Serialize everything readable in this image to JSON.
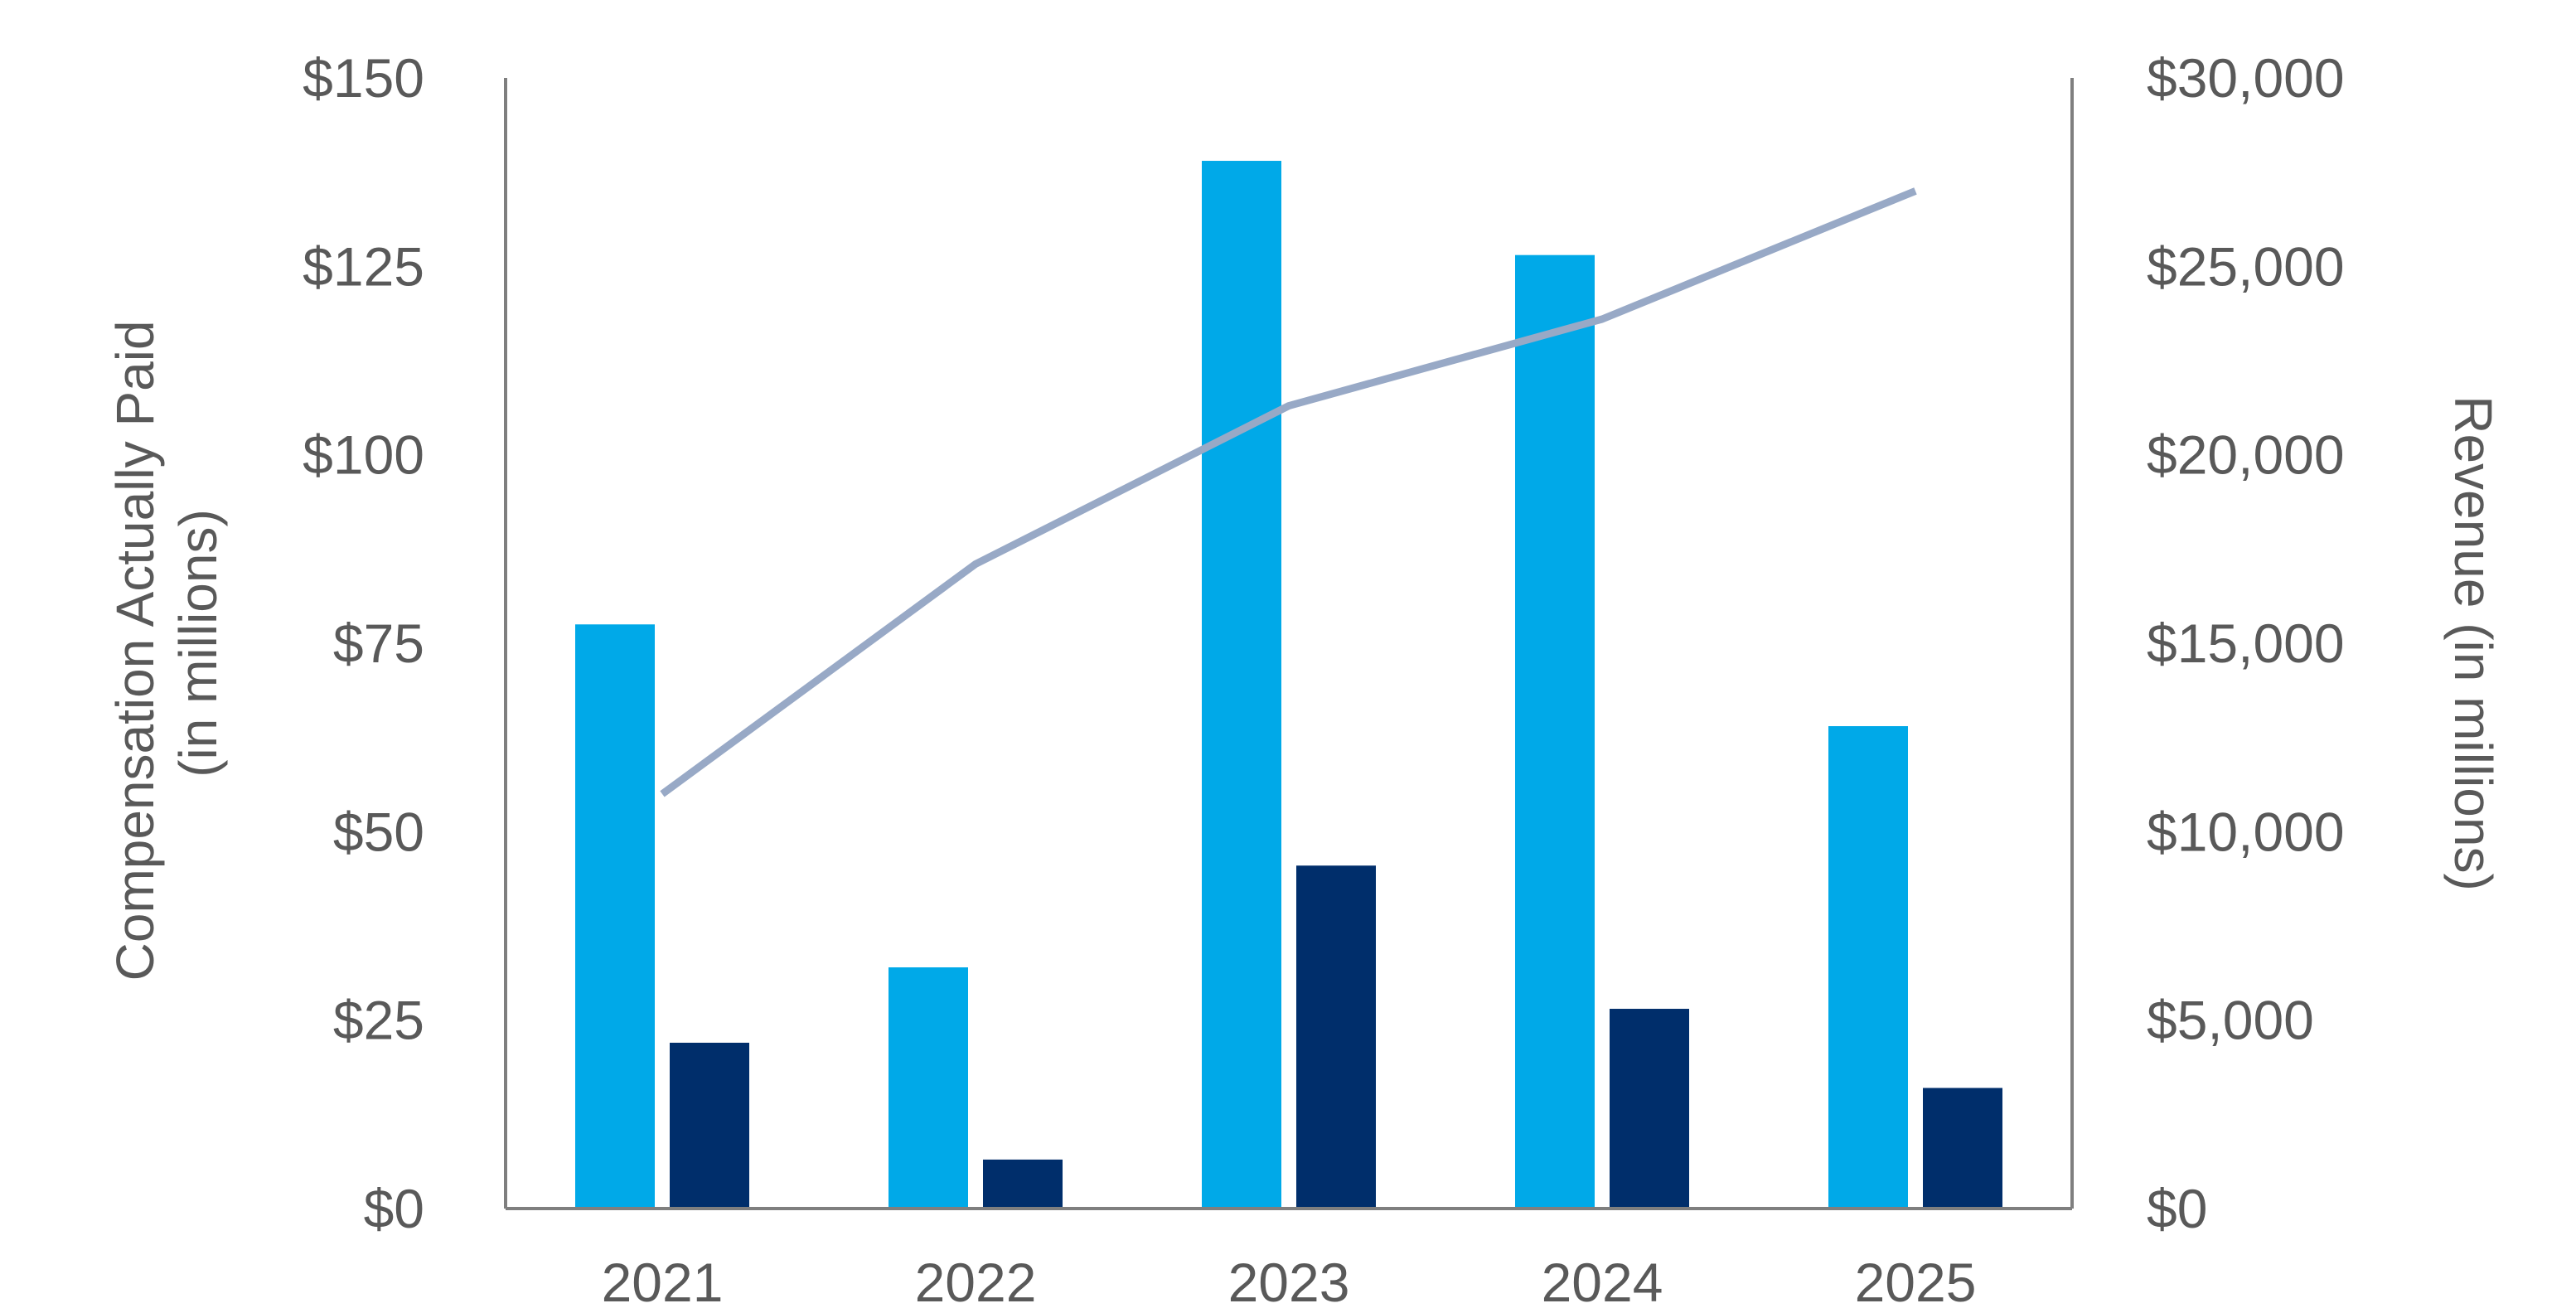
{
  "chart_data": {
    "type": "bar",
    "title": "",
    "categories": [
      "2021",
      "2022",
      "2023",
      "2024",
      "2025"
    ],
    "series": [
      {
        "name": "",
        "type": "bar",
        "axis": "left",
        "color": "#00A9E8",
        "values": [
          77.5,
          32.0,
          139.0,
          126.5,
          64.0
        ]
      },
      {
        "name": "",
        "type": "bar",
        "axis": "left",
        "color": "#002E6B",
        "values": [
          22.0,
          6.5,
          45.5,
          26.5,
          16.0
        ]
      },
      {
        "name": "",
        "type": "line",
        "axis": "right",
        "color": "#98A9C6",
        "values": [
          11000,
          17100,
          21300,
          23600,
          27000
        ]
      }
    ],
    "left_axis": {
      "label_line1": "Compensation Actually Paid",
      "label_line2": "(in millions)",
      "ylim": [
        0,
        150
      ],
      "ticks": [
        0,
        25,
        50,
        75,
        100,
        125,
        150
      ],
      "tick_labels": [
        "$0",
        "$25",
        "$50",
        "$75",
        "$100",
        "$125",
        "$150"
      ]
    },
    "right_axis": {
      "label": "Revenue (in millions)",
      "ylim": [
        0,
        30000
      ],
      "ticks": [
        0,
        5000,
        10000,
        15000,
        20000,
        25000,
        30000
      ],
      "tick_labels": [
        "$0",
        "$5,000",
        "$10,000",
        "$15,000",
        "$20,000",
        "$25,000",
        "$30,000"
      ]
    },
    "grid": false,
    "legend": "none"
  }
}
